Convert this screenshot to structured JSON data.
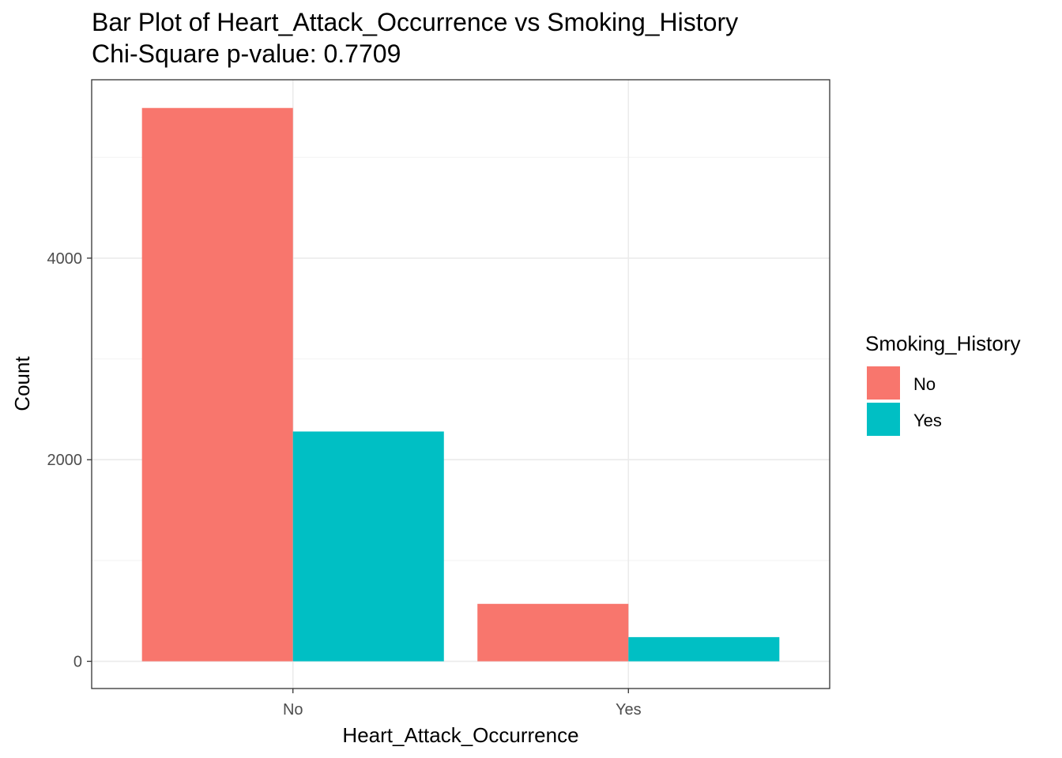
{
  "chart_data": {
    "type": "bar",
    "title": "Bar Plot of Heart_Attack_Occurrence vs Smoking_History",
    "subtitle": "Chi-Square p-value: 0.7709",
    "xlabel": "Heart_Attack_Occurrence",
    "ylabel": "Count",
    "categories": [
      "No",
      "Yes"
    ],
    "series": [
      {
        "name": "No",
        "color": "#F8766D",
        "values": [
          5490,
          570
        ]
      },
      {
        "name": "Yes",
        "color": "#00BFC4",
        "values": [
          2280,
          240
        ]
      }
    ],
    "ylim": [
      -270,
      5770
    ],
    "yticks": [
      0,
      2000,
      4000
    ],
    "ytick_labels": [
      "0",
      "2000",
      "4000"
    ],
    "grid": true,
    "legend": {
      "title": "Smoking_History",
      "position": "right"
    }
  }
}
